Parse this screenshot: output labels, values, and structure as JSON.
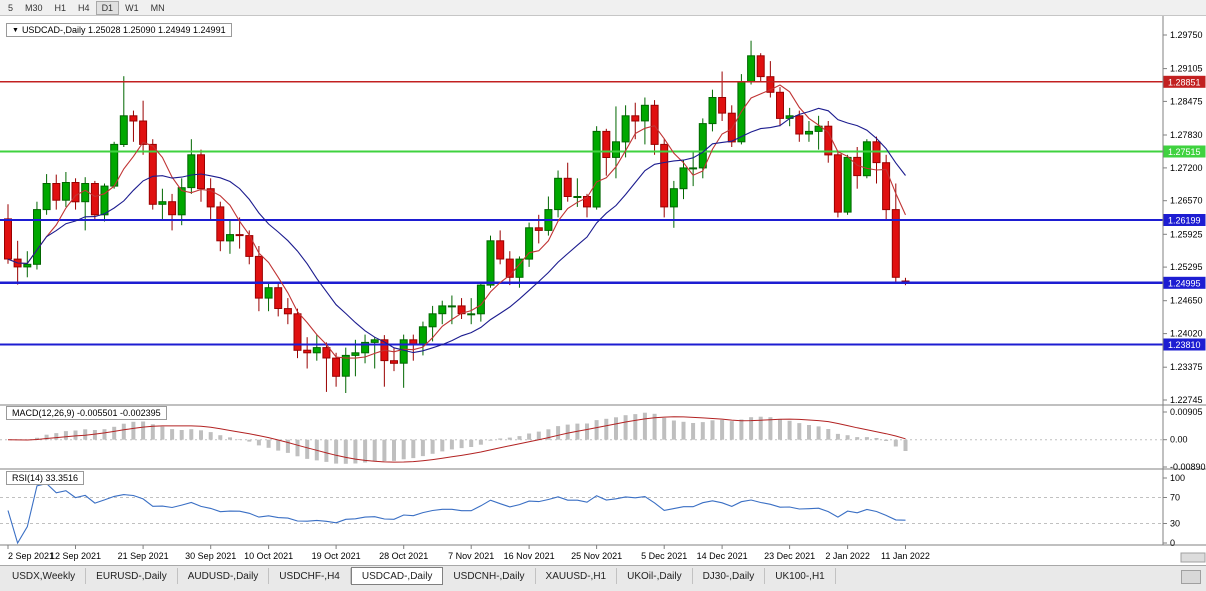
{
  "toolbar": {
    "timeframes": [
      "5",
      "M30",
      "H1",
      "H4",
      "D1",
      "W1",
      "MN"
    ],
    "active": "D1"
  },
  "title_box": {
    "dropdown_icon": "▼",
    "text": "USDCAD-,Daily  1.25028 1.25090 1.24949 1.24991"
  },
  "indicator_labels": {
    "macd": "MACD(12,26,9) -0.005501 -0.002395",
    "rsi": "RSI(14) 33.3516"
  },
  "price_axis": {
    "labels": [
      "1.29750",
      "1.29105",
      "1.28475",
      "1.27830",
      "1.27200",
      "1.26570",
      "1.25925",
      "1.25295",
      "1.24650",
      "1.24020",
      "1.23375",
      "1.22745"
    ]
  },
  "macd_axis": {
    "labels": [
      "0.00905",
      "0.00",
      "-0.00890"
    ]
  },
  "rsi_axis": {
    "labels": [
      "100",
      "70",
      "30",
      "0"
    ]
  },
  "levels": [
    {
      "price": 1.28851,
      "label": "1.28851",
      "color": "#c22020",
      "width": 1.4
    },
    {
      "price": 1.27515,
      "label": "1.27515",
      "color": "#3fd23f",
      "width": 2.4
    },
    {
      "price": 1.26199,
      "label": "1.26199",
      "color": "#1d1dd2",
      "width": 2.4
    },
    {
      "price": 1.24995,
      "label": "1.24995",
      "color": "#1d1dd2",
      "width": 2.4
    },
    {
      "price": 1.2381,
      "label": "1.23810",
      "color": "#1d1dd2",
      "width": 2.4
    }
  ],
  "date_axis": {
    "labels": [
      {
        "text": "2 Sep 2021",
        "bar": 0
      },
      {
        "text": "12 Sep 2021",
        "bar": 7
      },
      {
        "text": "21 Sep 2021",
        "bar": 14
      },
      {
        "text": "30 Sep 2021",
        "bar": 21
      },
      {
        "text": "10 Oct 2021",
        "bar": 27
      },
      {
        "text": "19 Oct 2021",
        "bar": 34
      },
      {
        "text": "28 Oct 2021",
        "bar": 41
      },
      {
        "text": "7 Nov 2021",
        "bar": 48
      },
      {
        "text": "16 Nov 2021",
        "bar": 54
      },
      {
        "text": "25 Nov 2021",
        "bar": 61
      },
      {
        "text": "5 Dec 2021",
        "bar": 68
      },
      {
        "text": "14 Dec 2021",
        "bar": 74
      },
      {
        "text": "23 Dec 2021",
        "bar": 81
      },
      {
        "text": "2 Jan 2022",
        "bar": 87
      },
      {
        "text": "11 Jan 2022",
        "bar": 93
      }
    ]
  },
  "chart_data": {
    "type": "candlestick",
    "symbol": "USDCAD-",
    "timeframe": "Daily",
    "current_bar": {
      "open": "1.25028",
      "high": "1.25090",
      "low": "1.24949",
      "close": "1.24991"
    },
    "ohlc": [
      [
        1.2622,
        1.265,
        1.2536,
        1.2545
      ],
      [
        1.2545,
        1.258,
        1.2496,
        1.253
      ],
      [
        1.253,
        1.256,
        1.251,
        1.2535
      ],
      [
        1.2535,
        1.2655,
        1.2525,
        1.264
      ],
      [
        1.264,
        1.2708,
        1.263,
        1.269
      ],
      [
        1.269,
        1.2707,
        1.264,
        1.2658
      ],
      [
        1.2658,
        1.2712,
        1.2645,
        1.2692
      ],
      [
        1.2692,
        1.27,
        1.264,
        1.2655
      ],
      [
        1.2655,
        1.2702,
        1.26,
        1.269
      ],
      [
        1.269,
        1.2695,
        1.262,
        1.263
      ],
      [
        1.263,
        1.269,
        1.2617,
        1.2685
      ],
      [
        1.2685,
        1.277,
        1.268,
        1.2765
      ],
      [
        1.2765,
        1.2896,
        1.276,
        1.282
      ],
      [
        1.282,
        1.283,
        1.277,
        1.281
      ],
      [
        1.281,
        1.2849,
        1.2745,
        1.2765
      ],
      [
        1.2765,
        1.2775,
        1.264,
        1.265
      ],
      [
        1.265,
        1.268,
        1.262,
        1.2655
      ],
      [
        1.2655,
        1.267,
        1.26,
        1.263
      ],
      [
        1.263,
        1.27,
        1.261,
        1.2682
      ],
      [
        1.2682,
        1.2775,
        1.267,
        1.2745
      ],
      [
        1.2745,
        1.2755,
        1.2655,
        1.268
      ],
      [
        1.268,
        1.27,
        1.262,
        1.2645
      ],
      [
        1.2645,
        1.2655,
        1.256,
        1.258
      ],
      [
        1.258,
        1.262,
        1.2555,
        1.2592
      ],
      [
        1.2592,
        1.2625,
        1.2565,
        1.259
      ],
      [
        1.259,
        1.26,
        1.2535,
        1.255
      ],
      [
        1.255,
        1.257,
        1.2445,
        1.247
      ],
      [
        1.247,
        1.25,
        1.2445,
        1.249
      ],
      [
        1.249,
        1.25,
        1.2435,
        1.245
      ],
      [
        1.245,
        1.247,
        1.242,
        1.244
      ],
      [
        1.244,
        1.245,
        1.2355,
        1.237
      ],
      [
        1.237,
        1.2395,
        1.2335,
        1.2365
      ],
      [
        1.2365,
        1.24,
        1.235,
        1.2375
      ],
      [
        1.2375,
        1.2385,
        1.229,
        1.2355
      ],
      [
        1.2355,
        1.2365,
        1.23,
        1.232
      ],
      [
        1.232,
        1.2375,
        1.2288,
        1.236
      ],
      [
        1.236,
        1.239,
        1.232,
        1.2365
      ],
      [
        1.2365,
        1.24,
        1.2345,
        1.2385
      ],
      [
        1.2385,
        1.2395,
        1.2335,
        1.239
      ],
      [
        1.239,
        1.2399,
        1.23,
        1.235
      ],
      [
        1.235,
        1.2375,
        1.233,
        1.2345
      ],
      [
        1.2345,
        1.24,
        1.2298,
        1.239
      ],
      [
        1.239,
        1.24,
        1.235,
        1.238
      ],
      [
        1.238,
        1.2425,
        1.236,
        1.2415
      ],
      [
        1.2415,
        1.2455,
        1.2387,
        1.244
      ],
      [
        1.244,
        1.2465,
        1.242,
        1.2455
      ],
      [
        1.2455,
        1.2475,
        1.242,
        1.2455
      ],
      [
        1.2455,
        1.247,
        1.243,
        1.244
      ],
      [
        1.244,
        1.247,
        1.242,
        1.244
      ],
      [
        1.244,
        1.25,
        1.2425,
        1.2495
      ],
      [
        1.2495,
        1.259,
        1.249,
        1.258
      ],
      [
        1.258,
        1.26,
        1.2535,
        1.2545
      ],
      [
        1.2545,
        1.256,
        1.2495,
        1.251
      ],
      [
        1.251,
        1.255,
        1.249,
        1.2545
      ],
      [
        1.2545,
        1.2615,
        1.253,
        1.2605
      ],
      [
        1.2605,
        1.263,
        1.2575,
        1.26
      ],
      [
        1.26,
        1.2665,
        1.259,
        1.264
      ],
      [
        1.264,
        1.2715,
        1.2625,
        1.27
      ],
      [
        1.27,
        1.273,
        1.2655,
        1.2665
      ],
      [
        1.2665,
        1.27,
        1.2645,
        1.2665
      ],
      [
        1.2665,
        1.267,
        1.2625,
        1.2645
      ],
      [
        1.2645,
        1.28,
        1.264,
        1.279
      ],
      [
        1.279,
        1.2795,
        1.2705,
        1.274
      ],
      [
        1.274,
        1.2838,
        1.27,
        1.277
      ],
      [
        1.277,
        1.284,
        1.274,
        1.282
      ],
      [
        1.282,
        1.2845,
        1.2775,
        1.281
      ],
      [
        1.281,
        1.2855,
        1.2765,
        1.284
      ],
      [
        1.284,
        1.285,
        1.2745,
        1.2765
      ],
      [
        1.2765,
        1.2775,
        1.2625,
        1.2645
      ],
      [
        1.2645,
        1.2695,
        1.2605,
        1.268
      ],
      [
        1.268,
        1.2735,
        1.266,
        1.272
      ],
      [
        1.272,
        1.275,
        1.2685,
        1.272
      ],
      [
        1.272,
        1.2815,
        1.27,
        1.2805
      ],
      [
        1.2805,
        1.287,
        1.279,
        1.2855
      ],
      [
        1.2855,
        1.2905,
        1.281,
        1.2825
      ],
      [
        1.2825,
        1.284,
        1.276,
        1.277
      ],
      [
        1.277,
        1.29,
        1.2765,
        1.2885
      ],
      [
        1.2885,
        1.2964,
        1.288,
        1.2935
      ],
      [
        1.2935,
        1.294,
        1.2885,
        1.2895
      ],
      [
        1.2895,
        1.2925,
        1.2855,
        1.2865
      ],
      [
        1.2865,
        1.2875,
        1.28,
        1.2815
      ],
      [
        1.2815,
        1.2835,
        1.28,
        1.282
      ],
      [
        1.282,
        1.283,
        1.277,
        1.2785
      ],
      [
        1.2785,
        1.281,
        1.277,
        1.279
      ],
      [
        1.279,
        1.282,
        1.2755,
        1.28
      ],
      [
        1.28,
        1.281,
        1.273,
        1.2745
      ],
      [
        1.2745,
        1.275,
        1.2625,
        1.2635
      ],
      [
        1.2635,
        1.2745,
        1.263,
        1.274
      ],
      [
        1.274,
        1.276,
        1.268,
        1.2705
      ],
      [
        1.2705,
        1.2775,
        1.27,
        1.277
      ],
      [
        1.277,
        1.278,
        1.269,
        1.273
      ],
      [
        1.273,
        1.2745,
        1.262,
        1.264
      ],
      [
        1.264,
        1.269,
        1.25,
        1.251
      ],
      [
        1.25028,
        1.2509,
        1.24949,
        1.24991
      ]
    ],
    "moving_averages": [
      {
        "period": 5,
        "color": "#c03434"
      },
      {
        "period": 13,
        "color": "#1c1c8f"
      }
    ],
    "macd": {
      "fast": 12,
      "slow": 26,
      "signal": 9,
      "hist_color": "#bfbfbf",
      "signal_color": "#b22222"
    },
    "rsi": {
      "period": 14,
      "color": "#3a6fc4",
      "levels": [
        70,
        30
      ]
    }
  },
  "colors": {
    "up_fill": "#00a800",
    "up_border": "#006600",
    "down_fill": "#e01010",
    "down_border": "#990000",
    "panel_bg": "#ffffff",
    "separator": "#808080",
    "axis_text": "#000000"
  },
  "tabs": {
    "items": [
      "USDX,Weekly",
      "EURUSD-,Daily",
      "AUDUSD-,Daily",
      "USDCHF-,H4",
      "USDCAD-,Daily",
      "USDCNH-,Daily",
      "XAUUSD-,H1",
      "UKOil-,Daily",
      "DJ30-,Daily",
      "UK100-,H1"
    ],
    "active": "USDCAD-,Daily"
  }
}
